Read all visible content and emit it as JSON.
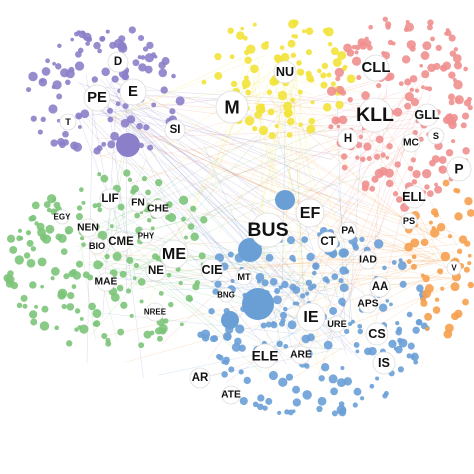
{
  "nodes": [
    {
      "label": "D"
    },
    {
      "label": "E"
    },
    {
      "label": "PE"
    },
    {
      "label": "T"
    },
    {
      "label": "SI"
    },
    {
      "label": "M"
    },
    {
      "label": "NU"
    },
    {
      "label": "CLL"
    },
    {
      "label": "KLL"
    },
    {
      "label": "GLL"
    },
    {
      "label": "MC"
    },
    {
      "label": "S"
    },
    {
      "label": "H"
    },
    {
      "label": "P"
    },
    {
      "label": "EF"
    },
    {
      "label": "BUS"
    },
    {
      "label": "CT"
    },
    {
      "label": "PA"
    },
    {
      "label": "ELL"
    },
    {
      "label": "PS"
    },
    {
      "label": "LIF"
    },
    {
      "label": "FN"
    },
    {
      "label": "CHE"
    },
    {
      "label": "EGY"
    },
    {
      "label": "NEN"
    },
    {
      "label": "BIO"
    },
    {
      "label": "CME"
    },
    {
      "label": "PHY"
    },
    {
      "label": "MAE"
    },
    {
      "label": "ME"
    },
    {
      "label": "NE"
    },
    {
      "label": "CIE"
    },
    {
      "label": "NREE"
    },
    {
      "label": "MT"
    },
    {
      "label": "BNG"
    },
    {
      "label": "IAD"
    },
    {
      "label": "AA"
    },
    {
      "label": "APS"
    },
    {
      "label": "IE"
    },
    {
      "label": "URE"
    },
    {
      "label": "CS"
    },
    {
      "label": "IS"
    },
    {
      "label": "ELE"
    },
    {
      "label": "ARE"
    },
    {
      "label": "AR"
    },
    {
      "label": "ATE"
    },
    {
      "label": "V"
    }
  ]
}
